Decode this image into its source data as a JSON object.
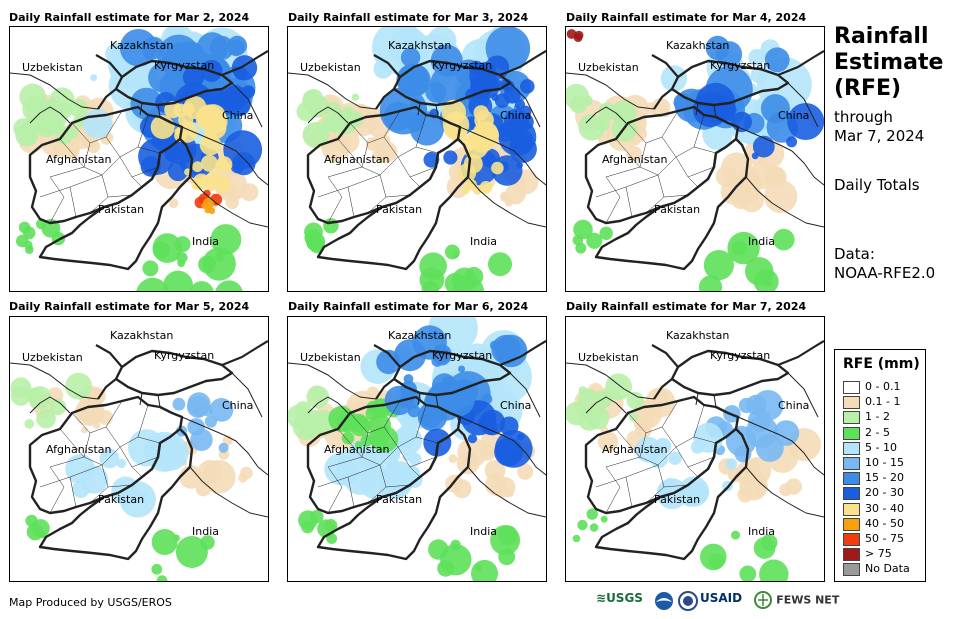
{
  "panels": [
    {
      "title": "Daily Rainfall estimate for Mar 2, 2024",
      "intensity": 1.0
    },
    {
      "title": "Daily Rainfall estimate for Mar 3, 2024",
      "intensity": 0.7
    },
    {
      "title": "Daily Rainfall estimate for Mar 4, 2024",
      "intensity": 0.4
    },
    {
      "title": "Daily Rainfall estimate for Mar 5, 2024",
      "intensity": 0.15
    },
    {
      "title": "Daily Rainfall estimate for Mar 6, 2024",
      "intensity": 0.5
    },
    {
      "title": "Daily Rainfall estimate for Mar 7, 2024",
      "intensity": 0.25
    }
  ],
  "country_labels": {
    "kazakhstan": "Kazakhstan",
    "uzbekistan": "Uzbekistan",
    "kyrgyzstan": "Kyrgyzstan",
    "china": "China",
    "afghanistan": "Afghanistan",
    "pakistan": "Pakistan",
    "india": "India"
  },
  "sidebar": {
    "title_line1": "Rainfall",
    "title_line2": "Estimate",
    "title_line3": "(RFE)",
    "through": "through",
    "date": "Mar 7, 2024",
    "totals": "Daily Totals",
    "data_label": "Data:",
    "data_source": "NOAA-RFE2.0"
  },
  "legend": {
    "title": "RFE (mm)",
    "items": [
      {
        "label": "0 - 0.1",
        "color": "#ffffff"
      },
      {
        "label": "0.1 - 1",
        "color": "#f5dcb8"
      },
      {
        "label": "1 - 2",
        "color": "#b8f0a8"
      },
      {
        "label": "2 - 5",
        "color": "#5ee05a"
      },
      {
        "label": "5 - 10",
        "color": "#b4e4fa"
      },
      {
        "label": "10 - 15",
        "color": "#78b8f2"
      },
      {
        "label": "15 - 20",
        "color": "#3c8ce8"
      },
      {
        "label": "20 - 30",
        "color": "#1a5ee0"
      },
      {
        "label": "30 - 40",
        "color": "#fae28c"
      },
      {
        "label": "40 - 50",
        "color": "#f8a010"
      },
      {
        "label": "50 - 75",
        "color": "#f03c10"
      },
      {
        "label": "> 75",
        "color": "#a01818"
      },
      {
        "label": "No Data",
        "color": "#9a9a9a"
      }
    ]
  },
  "footer": {
    "credit": "Map Produced by USGS/EROS",
    "logo_usgs": "USGS",
    "logo_usaid": "USAID",
    "logo_fews": "FEWS NET"
  }
}
